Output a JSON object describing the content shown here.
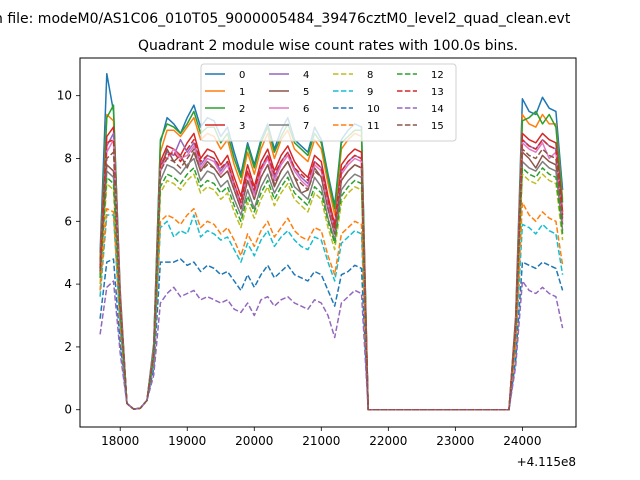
{
  "suptitle": "n file: modeM0/AS1C06_010T05_9000005484_39476cztM0_level2_quad_clean.evt",
  "chart_data": {
    "type": "line",
    "title": "Quadrant 2 module wise count rates with 100.0s bins.",
    "xlabel": "",
    "ylabel": "",
    "x_offset_label": "+4.115e8",
    "xlim": [
      17400,
      24800
    ],
    "ylim": [
      -0.55,
      11.2
    ],
    "xticks": [
      18000,
      19000,
      20000,
      21000,
      22000,
      23000,
      24000
    ],
    "yticks": [
      0,
      2,
      4,
      6,
      8,
      10
    ],
    "grid": false,
    "legend": {
      "location": "upper center",
      "columns": 4
    },
    "x": [
      17700,
      17800,
      17900,
      18000,
      18100,
      18200,
      18300,
      18400,
      18500,
      18600,
      18700,
      18800,
      18900,
      19000,
      19100,
      19200,
      19300,
      19400,
      19500,
      19600,
      19700,
      19800,
      19900,
      20000,
      20100,
      20200,
      20300,
      20400,
      20500,
      20600,
      20700,
      20800,
      20900,
      21000,
      21100,
      21200,
      21300,
      21400,
      21500,
      21600,
      21700,
      21800,
      21900,
      22000,
      22100,
      22200,
      22300,
      22400,
      22500,
      22600,
      22700,
      22800,
      22900,
      23000,
      23100,
      23200,
      23300,
      23400,
      23500,
      23600,
      23700,
      23800,
      23900,
      24000,
      24100,
      24200,
      24300,
      24400,
      24500,
      24600
    ],
    "series": [
      {
        "name": "0",
        "color": "#1f77b4",
        "dash": "solid",
        "values": [
          5.0,
          10.7,
          9.5,
          3.8,
          0.2,
          0.02,
          0.05,
          0.3,
          2.1,
          8.5,
          9.3,
          9.1,
          8.8,
          9.3,
          9.7,
          9.0,
          9.3,
          9.2,
          8.7,
          9.0,
          8.2,
          7.5,
          8.5,
          7.8,
          8.6,
          9.1,
          8.3,
          8.9,
          9.3,
          8.6,
          8.4,
          8.2,
          9.0,
          8.6,
          7.5,
          6.5,
          8.6,
          8.9,
          9.1,
          9.0,
          0.0,
          0,
          0,
          0,
          0,
          0,
          0,
          0,
          0,
          0,
          0,
          0,
          0,
          0,
          0,
          0,
          0,
          0,
          0,
          0,
          0,
          0.0,
          3.0,
          9.9,
          9.5,
          9.4,
          9.95,
          9.6,
          9.5,
          7.0
        ]
      },
      {
        "name": "1",
        "color": "#ff7f0e",
        "dash": "solid",
        "values": [
          4.8,
          9.4,
          9.2,
          3.7,
          0.2,
          0.02,
          0.05,
          0.3,
          2.0,
          8.2,
          8.9,
          8.9,
          8.7,
          9.0,
          9.3,
          8.6,
          8.8,
          8.7,
          8.3,
          8.6,
          7.8,
          7.2,
          8.2,
          7.5,
          8.3,
          8.8,
          8.0,
          8.6,
          8.9,
          8.3,
          8.1,
          7.9,
          8.6,
          8.3,
          7.2,
          6.2,
          8.3,
          8.6,
          8.8,
          8.7,
          0.0,
          0,
          0,
          0,
          0,
          0,
          0,
          0,
          0,
          0,
          0,
          0,
          0,
          0,
          0,
          0,
          0,
          0,
          0,
          0,
          0,
          0.0,
          2.9,
          9.4,
          9.1,
          9.0,
          9.4,
          9.1,
          9.1,
          6.7
        ]
      },
      {
        "name": "2",
        "color": "#2ca02c",
        "dash": "solid",
        "values": [
          4.7,
          9.3,
          9.7,
          3.6,
          0.2,
          0.02,
          0.05,
          0.3,
          2.0,
          8.6,
          9.1,
          9.0,
          8.8,
          9.1,
          9.5,
          8.8,
          9.0,
          9.0,
          8.5,
          8.8,
          8.0,
          7.4,
          8.4,
          7.7,
          8.5,
          9.0,
          8.2,
          8.7,
          9.1,
          8.5,
          8.3,
          8.1,
          8.8,
          8.5,
          7.4,
          6.4,
          8.5,
          8.7,
          8.9,
          8.9,
          0.0,
          0,
          0,
          0,
          0,
          0,
          0,
          0,
          0,
          0,
          0,
          0,
          0,
          0,
          0,
          0,
          0,
          0,
          0,
          0,
          0,
          0.0,
          2.9,
          9.2,
          9.3,
          9.5,
          9.1,
          9.4,
          9.0,
          6.6
        ]
      },
      {
        "name": "3",
        "color": "#d62728",
        "dash": "solid",
        "values": [
          4.6,
          8.7,
          9.0,
          3.6,
          0.2,
          0.02,
          0.05,
          0.3,
          1.9,
          7.9,
          8.4,
          8.3,
          8.1,
          8.5,
          8.8,
          8.0,
          8.3,
          8.2,
          7.8,
          8.1,
          7.4,
          6.8,
          7.8,
          7.1,
          7.9,
          8.3,
          7.6,
          8.1,
          8.4,
          7.9,
          7.6,
          7.4,
          8.1,
          7.9,
          6.8,
          5.9,
          7.8,
          8.1,
          8.3,
          8.2,
          0.0,
          0,
          0,
          0,
          0,
          0,
          0,
          0,
          0,
          0,
          0,
          0,
          0,
          0,
          0,
          0,
          0,
          0,
          0,
          0,
          0,
          0.0,
          2.8,
          8.8,
          8.6,
          8.5,
          8.8,
          8.6,
          8.5,
          6.3
        ]
      },
      {
        "name": "4",
        "color": "#9467bd",
        "dash": "solid",
        "values": [
          4.5,
          8.4,
          8.8,
          3.5,
          0.2,
          0.02,
          0.05,
          0.3,
          1.9,
          7.8,
          8.2,
          8.1,
          8.6,
          8.2,
          8.5,
          7.8,
          8.1,
          8.0,
          7.6,
          7.9,
          7.2,
          6.6,
          7.6,
          6.9,
          7.7,
          8.1,
          7.4,
          7.9,
          8.2,
          7.7,
          7.4,
          7.2,
          7.9,
          7.7,
          6.6,
          5.8,
          7.6,
          7.9,
          8.1,
          8.0,
          0.0,
          0,
          0,
          0,
          0,
          0,
          0,
          0,
          0,
          0,
          0,
          0,
          0,
          0,
          0,
          0,
          0,
          0,
          0,
          0,
          0,
          0.0,
          2.7,
          8.6,
          8.4,
          8.3,
          8.6,
          8.4,
          8.3,
          6.1
        ]
      },
      {
        "name": "5",
        "color": "#8c564b",
        "dash": "solid",
        "values": [
          4.3,
          7.8,
          7.6,
          3.3,
          0.2,
          0.02,
          0.05,
          0.3,
          1.8,
          7.6,
          8.3,
          7.9,
          8.1,
          7.7,
          8.2,
          7.6,
          7.9,
          7.7,
          7.4,
          7.6,
          7.0,
          6.4,
          7.3,
          6.7,
          7.4,
          7.8,
          7.1,
          7.6,
          7.9,
          7.4,
          6.9,
          7.0,
          7.7,
          7.4,
          6.4,
          5.6,
          7.3,
          7.6,
          7.8,
          7.7,
          0.0,
          0,
          0,
          0,
          0,
          0,
          0,
          0,
          0,
          0,
          0,
          0,
          0,
          0,
          0,
          0,
          0,
          0,
          0,
          0,
          0,
          0.0,
          2.6,
          8.2,
          8.0,
          7.7,
          8.1,
          7.9,
          7.8,
          5.9
        ]
      },
      {
        "name": "6",
        "color": "#e377c2",
        "dash": "solid",
        "values": [
          4.4,
          8.2,
          8.6,
          3.4,
          0.2,
          0.02,
          0.05,
          0.3,
          1.9,
          7.7,
          8.0,
          8.3,
          8.0,
          8.1,
          8.4,
          7.7,
          8.0,
          7.9,
          7.5,
          7.8,
          7.1,
          6.5,
          7.5,
          6.8,
          7.6,
          8.0,
          7.3,
          7.8,
          8.1,
          7.6,
          7.3,
          7.1,
          7.8,
          7.6,
          6.5,
          5.7,
          7.5,
          7.8,
          8.0,
          7.9,
          0.0,
          0,
          0,
          0,
          0,
          0,
          0,
          0,
          0,
          0,
          0,
          0,
          0,
          0,
          0,
          0,
          0,
          0,
          0,
          0,
          0,
          0.0,
          2.7,
          8.5,
          8.3,
          8.2,
          8.5,
          8.0,
          8.2,
          6.0
        ]
      },
      {
        "name": "7",
        "color": "#7f7f7f",
        "dash": "solid",
        "values": [
          4.2,
          7.6,
          7.4,
          3.2,
          0.2,
          0.02,
          0.05,
          0.3,
          1.8,
          7.3,
          7.8,
          7.7,
          7.5,
          7.8,
          8.0,
          7.3,
          7.6,
          7.5,
          7.1,
          7.3,
          6.7,
          6.2,
          7.0,
          6.4,
          7.1,
          7.5,
          6.9,
          7.3,
          7.6,
          7.1,
          6.9,
          6.7,
          7.4,
          7.1,
          6.1,
          5.4,
          7.0,
          7.3,
          7.5,
          7.4,
          0.0,
          0,
          0,
          0,
          0,
          0,
          0,
          0,
          0,
          0,
          0,
          0,
          0,
          0,
          0,
          0,
          0,
          0,
          0,
          0,
          0,
          0.0,
          2.5,
          7.9,
          7.7,
          7.6,
          7.9,
          7.7,
          7.6,
          5.7
        ]
      },
      {
        "name": "8",
        "color": "#bcbd22",
        "dash": "dashed",
        "values": [
          4.0,
          7.2,
          7.0,
          3.0,
          0.2,
          0.02,
          0.05,
          0.3,
          1.7,
          6.9,
          7.3,
          7.2,
          7.0,
          7.3,
          7.5,
          6.9,
          7.1,
          7.0,
          6.7,
          6.9,
          6.3,
          5.8,
          6.6,
          6.1,
          6.7,
          7.1,
          6.5,
          6.9,
          7.2,
          6.7,
          6.5,
          6.3,
          6.9,
          6.7,
          5.8,
          5.1,
          6.6,
          6.9,
          7.1,
          7.0,
          0.0,
          0,
          0,
          0,
          0,
          0,
          0,
          0,
          0,
          0,
          0,
          0,
          0,
          0,
          0,
          0,
          0,
          0,
          0,
          0,
          0,
          0.0,
          2.4,
          7.5,
          7.3,
          7.2,
          7.5,
          7.3,
          7.2,
          5.4
        ]
      },
      {
        "name": "9",
        "color": "#17becf",
        "dash": "dashed",
        "values": [
          3.6,
          6.2,
          6.2,
          2.6,
          0.2,
          0.02,
          0.05,
          0.3,
          1.5,
          5.8,
          6.0,
          5.5,
          5.7,
          5.6,
          6.2,
          5.5,
          5.7,
          5.6,
          5.4,
          5.5,
          5.1,
          4.7,
          5.3,
          4.9,
          5.4,
          5.7,
          5.2,
          5.5,
          5.7,
          5.4,
          5.2,
          5.1,
          5.5,
          5.4,
          4.7,
          4.1,
          5.3,
          5.5,
          5.7,
          5.6,
          0.0,
          0,
          0,
          0,
          0,
          0,
          0,
          0,
          0,
          0,
          0,
          0,
          0,
          0,
          0,
          0,
          0,
          0,
          0,
          0,
          0,
          0.0,
          2.0,
          5.9,
          5.8,
          5.6,
          5.9,
          5.7,
          5.6,
          4.3
        ]
      },
      {
        "name": "10",
        "color": "#1f77b4",
        "dash": "dashed",
        "values": [
          2.9,
          4.7,
          4.8,
          2.1,
          0.2,
          0.02,
          0.05,
          0.3,
          1.3,
          4.7,
          4.7,
          4.7,
          4.8,
          4.6,
          4.7,
          4.4,
          4.6,
          4.5,
          4.3,
          4.4,
          4.1,
          3.8,
          4.3,
          3.9,
          4.3,
          4.6,
          4.2,
          4.4,
          4.6,
          4.3,
          4.2,
          4.1,
          4.4,
          4.3,
          3.8,
          3.3,
          4.3,
          4.4,
          4.6,
          4.5,
          0.0,
          0,
          0,
          0,
          0,
          0,
          0,
          0,
          0,
          0,
          0,
          0,
          0,
          0,
          0,
          0,
          0,
          0,
          0,
          0,
          0,
          0.0,
          1.6,
          4.7,
          4.6,
          4.5,
          4.7,
          4.6,
          4.5,
          3.8
        ]
      },
      {
        "name": "11",
        "color": "#ff7f0e",
        "dash": "dashed",
        "values": [
          3.8,
          6.4,
          6.3,
          2.7,
          0.2,
          0.02,
          0.05,
          0.3,
          1.6,
          6.0,
          6.2,
          6.1,
          5.9,
          6.2,
          6.4,
          5.8,
          6.0,
          5.9,
          5.6,
          5.8,
          5.4,
          4.9,
          5.6,
          5.2,
          5.7,
          6.0,
          5.5,
          5.8,
          6.1,
          5.7,
          5.5,
          5.4,
          5.8,
          5.7,
          4.9,
          4.3,
          5.6,
          5.8,
          6.0,
          5.9,
          0.0,
          0,
          0,
          0,
          0,
          0,
          0,
          0,
          0,
          0,
          0,
          0,
          0,
          0,
          0,
          0,
          0,
          0,
          0,
          0,
          0,
          0.0,
          2.1,
          6.6,
          6.2,
          6.0,
          6.3,
          6.1,
          6.0,
          4.6
        ]
      },
      {
        "name": "12",
        "color": "#2ca02c",
        "dash": "dashed",
        "values": [
          4.2,
          7.4,
          7.2,
          3.1,
          0.2,
          0.02,
          0.05,
          0.3,
          1.7,
          7.1,
          7.5,
          7.4,
          7.2,
          7.5,
          7.7,
          7.1,
          7.3,
          7.2,
          6.9,
          7.1,
          6.5,
          6.0,
          6.8,
          6.3,
          6.9,
          7.3,
          6.7,
          7.1,
          7.4,
          6.9,
          6.7,
          6.5,
          7.1,
          6.9,
          6.0,
          5.3,
          6.8,
          7.1,
          7.3,
          7.2,
          0.0,
          0,
          0,
          0,
          0,
          0,
          0,
          0,
          0,
          0,
          0,
          0,
          0,
          0,
          0,
          0,
          0,
          0,
          0,
          0,
          0,
          0.0,
          2.5,
          7.7,
          7.5,
          7.4,
          7.7,
          7.5,
          7.4,
          5.6
        ]
      },
      {
        "name": "13",
        "color": "#d62728",
        "dash": "dashed",
        "values": [
          4.5,
          8.5,
          8.6,
          3.4,
          0.2,
          0.02,
          0.05,
          0.3,
          1.8,
          7.8,
          8.1,
          8.2,
          7.9,
          8.3,
          8.6,
          7.9,
          8.1,
          8.0,
          7.7,
          7.9,
          7.2,
          6.6,
          7.6,
          7.0,
          7.7,
          8.1,
          7.5,
          7.9,
          8.2,
          7.7,
          7.5,
          7.3,
          7.9,
          7.7,
          6.7,
          5.8,
          7.6,
          7.9,
          8.1,
          8.0,
          0.0,
          0,
          0,
          0,
          0,
          0,
          0,
          0,
          0,
          0,
          0,
          0,
          0,
          0,
          0,
          0,
          0,
          0,
          0,
          0,
          0,
          0.0,
          2.7,
          8.6,
          8.4,
          8.3,
          8.6,
          8.4,
          8.3,
          6.2
        ]
      },
      {
        "name": "14",
        "color": "#9467bd",
        "dash": "dashed",
        "values": [
          2.4,
          3.9,
          4.1,
          1.8,
          0.2,
          0.02,
          0.05,
          0.3,
          1.1,
          3.4,
          3.7,
          3.9,
          3.6,
          3.7,
          3.8,
          3.5,
          3.6,
          3.5,
          3.4,
          3.5,
          3.2,
          3.1,
          3.4,
          3.0,
          3.5,
          3.6,
          3.3,
          3.5,
          3.6,
          3.4,
          3.3,
          3.2,
          3.5,
          3.4,
          3.0,
          2.3,
          3.4,
          3.6,
          3.8,
          3.7,
          0.0,
          0,
          0,
          0,
          0,
          0,
          0,
          0,
          0,
          0,
          0,
          0,
          0,
          0,
          0,
          0,
          0,
          0,
          0,
          0,
          0,
          0.0,
          1.4,
          4.1,
          3.8,
          3.7,
          3.9,
          3.7,
          3.6,
          2.6
        ]
      },
      {
        "name": "15",
        "color": "#8c564b",
        "dash": "dashed",
        "values": [
          4.4,
          8.0,
          8.2,
          3.3,
          0.2,
          0.02,
          0.05,
          0.3,
          1.8,
          7.6,
          8.0,
          7.9,
          7.7,
          8.0,
          8.3,
          7.6,
          7.8,
          7.7,
          7.4,
          7.6,
          7.0,
          6.4,
          7.3,
          6.7,
          7.4,
          7.8,
          7.2,
          7.6,
          7.9,
          7.4,
          7.2,
          7.0,
          7.6,
          7.4,
          6.4,
          5.6,
          7.3,
          7.6,
          7.8,
          7.7,
          0.0,
          0,
          0,
          0,
          0,
          0,
          0,
          0,
          0,
          0,
          0,
          0,
          0,
          0,
          0,
          0,
          0,
          0,
          0,
          0,
          0,
          0.0,
          2.6,
          8.3,
          8.1,
          8.0,
          8.3,
          8.1,
          8.0,
          6.0
        ]
      }
    ]
  }
}
